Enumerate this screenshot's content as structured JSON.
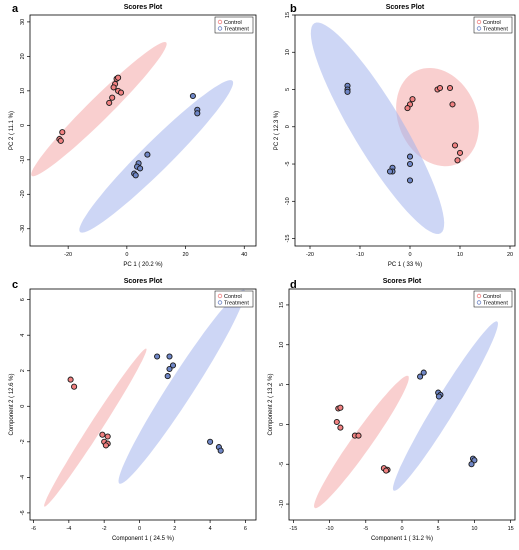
{
  "chart_data": [
    {
      "panel_label": "a",
      "type": "scatter",
      "title": "Scores Plot",
      "xlabel": "PC 1 ( 20.2 %)",
      "ylabel": "PC 2 ( 11.1 %)",
      "xlim": [
        -33,
        44
      ],
      "ylim": [
        -35,
        32
      ],
      "xticks": [
        -20,
        0,
        20,
        40
      ],
      "yticks": [
        -30,
        -20,
        -10,
        0,
        10,
        20,
        30
      ],
      "legend_position": "top-right",
      "series": [
        {
          "name": "Control",
          "color": "#f08080",
          "ellipse_color": "#f4a7a7",
          "points": [
            [
              -3.5,
              13.5
            ],
            [
              -3,
              13.8
            ],
            [
              -4,
              12
            ],
            [
              -4.5,
              11
            ],
            [
              -3,
              10
            ],
            [
              -2,
              9.5
            ],
            [
              -6,
              6.5
            ],
            [
              -5,
              8
            ],
            [
              -22,
              -2
            ],
            [
              -23,
              -4
            ],
            [
              -22.5,
              -4.5
            ]
          ],
          "ellipse": {
            "center": [
              -9.5,
              4.7
            ],
            "semi_major": 30,
            "semi_minor": 3.5,
            "angle_deg": 40
          }
        },
        {
          "name": "Treatment",
          "color": "#6f86c6",
          "ellipse_color": "#a4b4ec",
          "points": [
            [
              22.5,
              8.5
            ],
            [
              24,
              4.5
            ],
            [
              24,
              3.5
            ],
            [
              7,
              -8.5
            ],
            [
              4,
              -11
            ],
            [
              3.5,
              -12
            ],
            [
              4.5,
              -12.5
            ],
            [
              2.5,
              -14
            ],
            [
              3,
              -14.5
            ]
          ],
          "ellipse": {
            "center": [
              10,
              -9
            ],
            "semi_major": 34,
            "semi_minor": 4.5,
            "angle_deg": 40
          }
        }
      ]
    },
    {
      "panel_label": "b",
      "type": "scatter",
      "title": "Scores Plot",
      "xlabel": "PC 1 ( 33 %)",
      "ylabel": "PC 2 ( 12.3 %)",
      "xlim": [
        -23,
        21
      ],
      "ylim": [
        -16,
        15
      ],
      "xticks": [
        -20,
        -10,
        0,
        10,
        20
      ],
      "yticks": [
        -15,
        -10,
        -5,
        0,
        5,
        10,
        15
      ],
      "legend_position": "top-right",
      "series": [
        {
          "name": "Control",
          "color": "#f08080",
          "ellipse_color": "#f4a7a7",
          "points": [
            [
              5.5,
              5
            ],
            [
              6,
              5.2
            ],
            [
              8,
              5.2
            ],
            [
              0.5,
              3.7
            ],
            [
              0,
              3
            ],
            [
              -0.5,
              2.5
            ],
            [
              8.5,
              3
            ],
            [
              9,
              -2.5
            ],
            [
              10,
              -3.5
            ],
            [
              9.5,
              -4.5
            ]
          ],
          "ellipse": {
            "center": [
              5.5,
              1.3
            ],
            "semi_major": 8.5,
            "semi_minor": 6.3,
            "angle_deg": -20
          }
        },
        {
          "name": "Treatment",
          "color": "#6f86c6",
          "ellipse_color": "#a4b4ec",
          "points": [
            [
              -12.5,
              5.5
            ],
            [
              -12.5,
              5
            ],
            [
              -12.5,
              4.7
            ],
            [
              0,
              -4
            ],
            [
              0,
              -5
            ],
            [
              -3.5,
              -5.5
            ],
            [
              -3.5,
              -6
            ],
            [
              -4,
              -6
            ],
            [
              0,
              -7.2
            ]
          ],
          "ellipse": {
            "center": [
              -6.5,
              -0.2
            ],
            "semi_major": 19,
            "semi_minor": 4.3,
            "angle_deg": -47
          }
        }
      ]
    },
    {
      "panel_label": "c",
      "type": "scatter",
      "title": "Scores Plot",
      "xlabel": "Component 1 ( 24.5 %)",
      "ylabel": "Component 2 ( 12.6 %)",
      "xlim": [
        -6.2,
        6.6
      ],
      "ylim": [
        -6.4,
        6.6
      ],
      "xticks": [
        -6,
        -4,
        -2,
        0,
        2,
        4,
        6
      ],
      "yticks": [
        -6,
        -4,
        -2,
        0,
        2,
        4,
        6
      ],
      "legend_position": "top-right",
      "series": [
        {
          "name": "Control",
          "color": "#f08080",
          "ellipse_color": "#f4a7a7",
          "points": [
            [
              -3.9,
              1.5
            ],
            [
              -3.7,
              1.1
            ],
            [
              -2.1,
              -1.6
            ],
            [
              -1.8,
              -1.7
            ],
            [
              -2,
              -2
            ],
            [
              -1.8,
              -2.1
            ],
            [
              -1.9,
              -2.2
            ]
          ],
          "ellipse": {
            "center": [
              -2.5,
              -1.2
            ],
            "semi_major": 5.3,
            "semi_minor": 0.35,
            "angle_deg": 57
          }
        },
        {
          "name": "Treatment",
          "color": "#6f86c6",
          "ellipse_color": "#a4b4ec",
          "points": [
            [
              1,
              2.8
            ],
            [
              1.7,
              2.8
            ],
            [
              1.9,
              2.3
            ],
            [
              1.7,
              2.1
            ],
            [
              1.6,
              1.7
            ],
            [
              4,
              -2
            ],
            [
              4.5,
              -2.3
            ],
            [
              4.6,
              -2.5
            ]
          ],
          "ellipse": {
            "center": [
              2.4,
              1.1
            ],
            "semi_major": 6.5,
            "semi_minor": 0.7,
            "angle_deg": 57
          }
        }
      ]
    },
    {
      "panel_label": "d",
      "type": "scatter",
      "title": "Scores Plot",
      "xlabel": "Component 1 ( 31.2 %)",
      "ylabel": "Component 2 ( 13.2 %)",
      "xlim": [
        -15.6,
        15.6
      ],
      "ylim": [
        -12,
        17
      ],
      "xticks": [
        -15,
        -10,
        -5,
        0,
        5,
        10,
        15
      ],
      "yticks": [
        -10,
        -5,
        0,
        5,
        10,
        15
      ],
      "legend_position": "top-right",
      "series": [
        {
          "name": "Control",
          "color": "#f08080",
          "ellipse_color": "#f4a7a7",
          "points": [
            [
              -8.8,
              2
            ],
            [
              -8.5,
              2.1
            ],
            [
              -9,
              0.3
            ],
            [
              -8.5,
              -0.4
            ],
            [
              -6.5,
              -1.4
            ],
            [
              -6,
              -1.4
            ],
            [
              -2.5,
              -5.5
            ],
            [
              -2,
              -5.7
            ],
            [
              -2.2,
              -5.8
            ]
          ],
          "ellipse": {
            "center": [
              -5.6,
              -2.2
            ],
            "semi_major": 10.5,
            "semi_minor": 1.3,
            "angle_deg": 52
          }
        },
        {
          "name": "Treatment",
          "color": "#6f86c6",
          "ellipse_color": "#a4b4ec",
          "points": [
            [
              3,
              6.5
            ],
            [
              2.5,
              6
            ],
            [
              5,
              4
            ],
            [
              5.3,
              3.7
            ],
            [
              5.1,
              3.5
            ],
            [
              9.8,
              -4.3
            ],
            [
              10,
              -4.5
            ],
            [
              9.6,
              -5
            ]
          ],
          "ellipse": {
            "center": [
              6,
              2.3
            ],
            "semi_major": 12.8,
            "semi_minor": 1.4,
            "angle_deg": 56
          }
        }
      ]
    }
  ]
}
